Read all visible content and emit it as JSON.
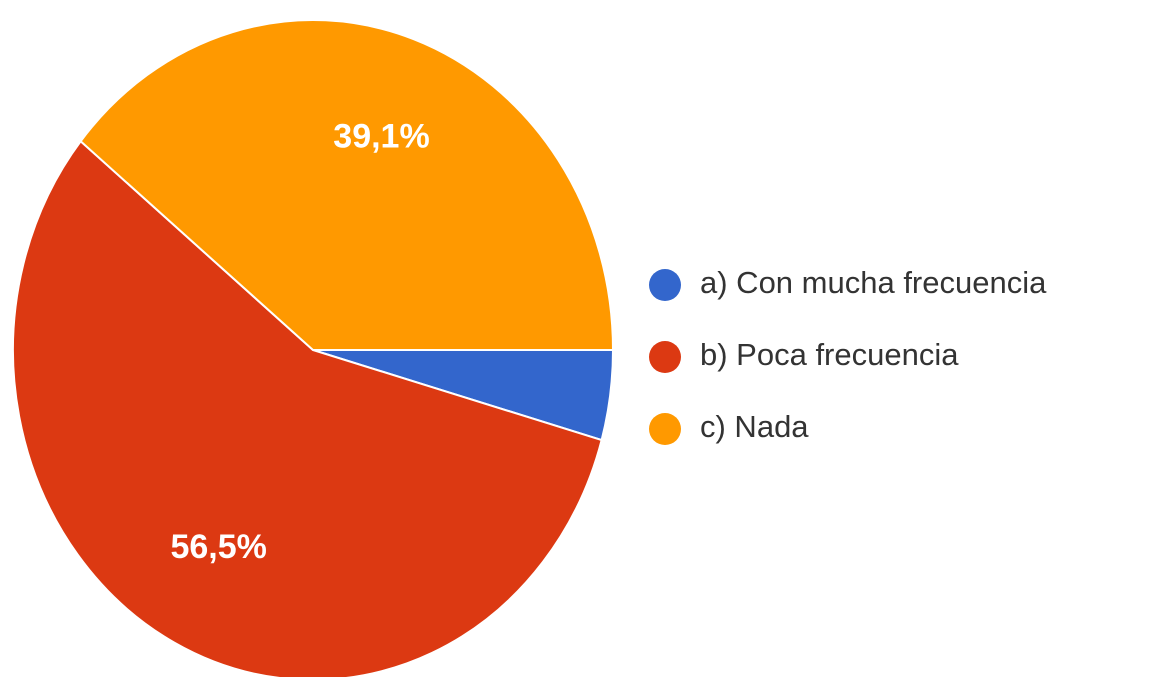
{
  "chart_data": {
    "type": "pie",
    "categories": [
      "a) Con mucha frecuencia",
      "b) Poca frecuencia",
      "c) Nada"
    ],
    "values": [
      4.4,
      56.5,
      39.1
    ],
    "value_labels": [
      null,
      "56,5%",
      "39,1%"
    ],
    "colors": [
      "#3366cc",
      "#dc3912",
      "#ff9900"
    ],
    "legend": "right"
  }
}
